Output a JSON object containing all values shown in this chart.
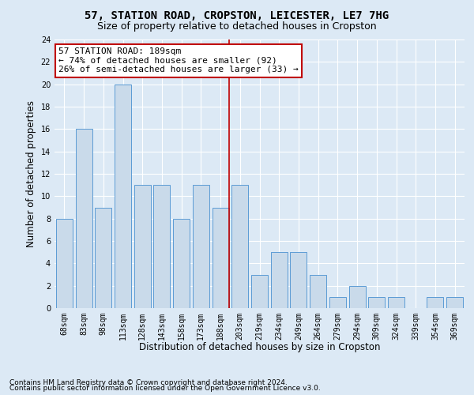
{
  "title": "57, STATION ROAD, CROPSTON, LEICESTER, LE7 7HG",
  "subtitle": "Size of property relative to detached houses in Cropston",
  "xlabel": "Distribution of detached houses by size in Cropston",
  "ylabel": "Number of detached properties",
  "categories": [
    "68sqm",
    "83sqm",
    "98sqm",
    "113sqm",
    "128sqm",
    "143sqm",
    "158sqm",
    "173sqm",
    "188sqm",
    "203sqm",
    "219sqm",
    "234sqm",
    "249sqm",
    "264sqm",
    "279sqm",
    "294sqm",
    "309sqm",
    "324sqm",
    "339sqm",
    "354sqm",
    "369sqm"
  ],
  "values": [
    8,
    16,
    9,
    20,
    11,
    11,
    8,
    11,
    9,
    11,
    3,
    5,
    5,
    3,
    1,
    2,
    1,
    1,
    0,
    1,
    1
  ],
  "bar_color": "#c9daea",
  "bar_edge_color": "#5b9bd5",
  "vline_index": 8,
  "vline_color": "#c00000",
  "annotation_title": "57 STATION ROAD: 189sqm",
  "annotation_line1": "← 74% of detached houses are smaller (92)",
  "annotation_line2": "26% of semi-detached houses are larger (33) →",
  "annotation_box_color": "#c00000",
  "ylim": [
    0,
    24
  ],
  "yticks": [
    0,
    2,
    4,
    6,
    8,
    10,
    12,
    14,
    16,
    18,
    20,
    22,
    24
  ],
  "footnote1": "Contains HM Land Registry data © Crown copyright and database right 2024.",
  "footnote2": "Contains public sector information licensed under the Open Government Licence v3.0.",
  "background_color": "#dce9f5",
  "grid_color": "#ffffff",
  "title_fontsize": 10,
  "subtitle_fontsize": 9,
  "xlabel_fontsize": 8.5,
  "ylabel_fontsize": 8.5,
  "tick_fontsize": 7,
  "annotation_fontsize": 8,
  "footnote_fontsize": 6.5
}
